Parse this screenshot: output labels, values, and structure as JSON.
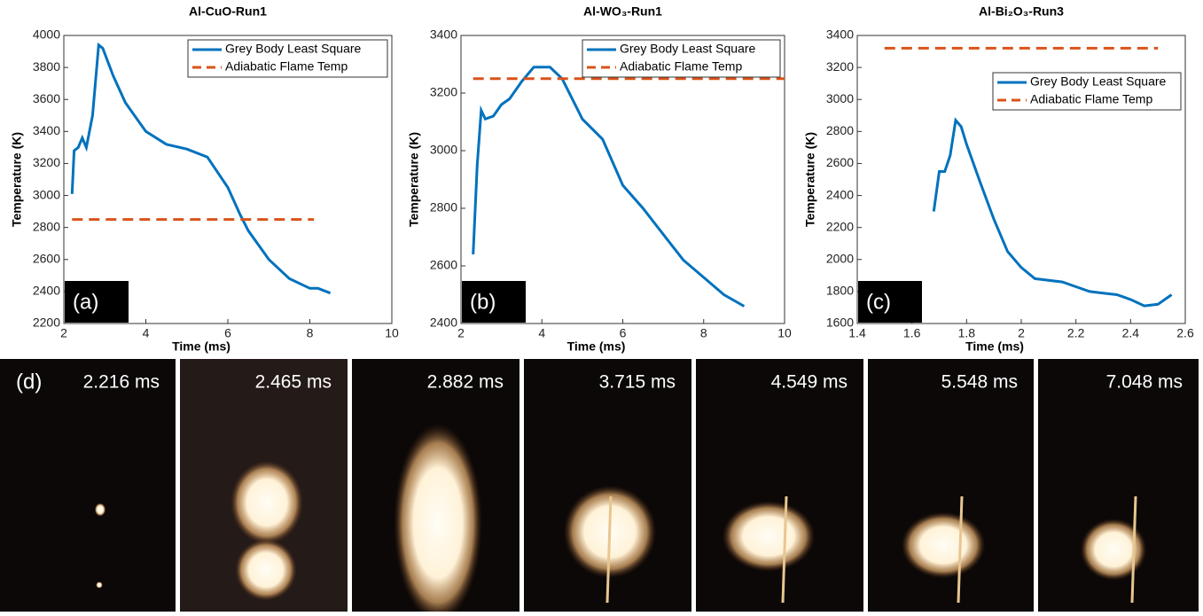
{
  "chart_data": [
    {
      "type": "line",
      "title": "Al-CuO-Run1",
      "panel_label": "(a)",
      "xlabel": "Time (ms)",
      "ylabel": "Temperature (K)",
      "xlim": [
        2,
        10
      ],
      "xticks": [
        2,
        4,
        6,
        8,
        10
      ],
      "ylim": [
        2200,
        4000
      ],
      "yticks": [
        2200,
        2400,
        2600,
        2800,
        3000,
        3200,
        3400,
        3600,
        3800,
        4000
      ],
      "legend": "upper right",
      "series": [
        {
          "name": "Grey Body Least Square",
          "color": "#0072bd",
          "dashed": false,
          "x": [
            2.2,
            2.25,
            2.35,
            2.45,
            2.55,
            2.7,
            2.85,
            2.95,
            3.2,
            3.5,
            4,
            4.5,
            5,
            5.5,
            6,
            6.3,
            6.5,
            7,
            7.5,
            8,
            8.2,
            8.5
          ],
          "values": [
            3010,
            3280,
            3300,
            3360,
            3300,
            3500,
            3940,
            3920,
            3750,
            3580,
            3400,
            3320,
            3290,
            3240,
            3050,
            2880,
            2780,
            2600,
            2480,
            2420,
            2420,
            2390
          ]
        },
        {
          "name": "Adiabatic Flame Temp",
          "color": "#d95319",
          "dashed": true,
          "x": [
            2.2,
            8.1
          ],
          "values": [
            2850,
            2850
          ]
        }
      ]
    },
    {
      "type": "line",
      "title": "Al-WO₃-Run1",
      "panel_label": "(b)",
      "xlabel": "Time (ms)",
      "ylabel": "Temperature (K)",
      "xlim": [
        2,
        10
      ],
      "xticks": [
        2,
        4,
        6,
        8,
        10
      ],
      "ylim": [
        2400,
        3400
      ],
      "yticks": [
        2400,
        2600,
        2800,
        3000,
        3200,
        3400
      ],
      "legend": "upper right",
      "series": [
        {
          "name": "Grey Body Least Square",
          "color": "#0072bd",
          "dashed": false,
          "x": [
            2.3,
            2.4,
            2.5,
            2.6,
            2.8,
            3,
            3.2,
            3.5,
            3.8,
            4.2,
            4.5,
            5,
            5.5,
            6,
            6.5,
            7,
            7.5,
            8,
            8.5,
            9
          ],
          "values": [
            2640,
            2950,
            3140,
            3110,
            3120,
            3160,
            3180,
            3240,
            3290,
            3290,
            3250,
            3110,
            3040,
            2880,
            2800,
            2710,
            2620,
            2560,
            2500,
            2460
          ]
        },
        {
          "name": "Adiabatic Flame Temp",
          "color": "#d95319",
          "dashed": true,
          "x": [
            2.3,
            10
          ],
          "values": [
            3250,
            3250
          ]
        }
      ]
    },
    {
      "type": "line",
      "title": "Al-Bi₂O₃-Run3",
      "panel_label": "(c)",
      "xlabel": "Time (ms)",
      "ylabel": "Temperature (K)",
      "xlim": [
        1.4,
        2.6
      ],
      "xticks": [
        1.4,
        1.6,
        1.8,
        2,
        2.2,
        2.4,
        2.6
      ],
      "ylim": [
        1600,
        3400
      ],
      "yticks": [
        1600,
        1800,
        2000,
        2200,
        2400,
        2600,
        2800,
        3000,
        3200,
        3400
      ],
      "legend": "upper right",
      "series": [
        {
          "name": "Grey Body Least Square",
          "color": "#0072bd",
          "dashed": false,
          "x": [
            1.68,
            1.7,
            1.72,
            1.74,
            1.76,
            1.78,
            1.8,
            1.85,
            1.9,
            1.95,
            2,
            2.05,
            2.1,
            2.15,
            2.2,
            2.25,
            2.3,
            2.35,
            2.4,
            2.45,
            2.5,
            2.55
          ],
          "values": [
            2300,
            2550,
            2550,
            2650,
            2870,
            2830,
            2720,
            2480,
            2250,
            2050,
            1950,
            1880,
            1870,
            1860,
            1830,
            1800,
            1790,
            1780,
            1750,
            1710,
            1720,
            1780
          ]
        },
        {
          "name": "Adiabatic Flame Temp",
          "color": "#d95319",
          "dashed": true,
          "x": [
            1.5,
            2.5
          ],
          "values": [
            3320,
            3320
          ]
        }
      ]
    }
  ],
  "photos": {
    "panel_label": "(d)",
    "frames": [
      "2.216 ms",
      "2.465 ms",
      "2.882 ms",
      "3.715 ms",
      "4.549 ms",
      "5.548 ms",
      "7.048 ms"
    ]
  }
}
